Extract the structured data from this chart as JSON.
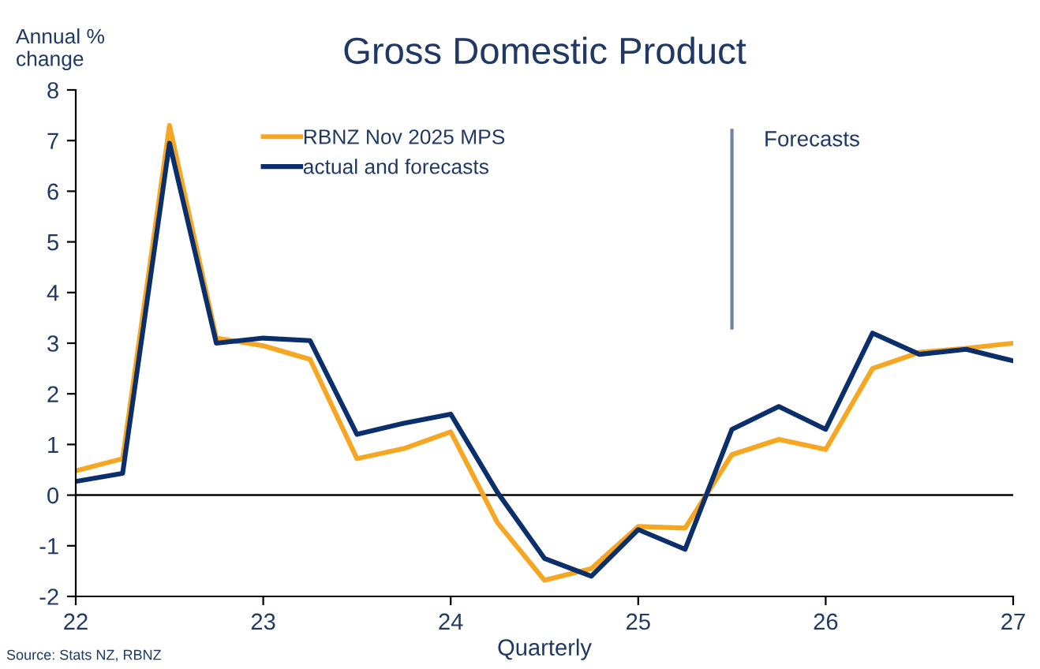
{
  "chart_data": {
    "type": "line",
    "title": "Gross Domestic Product",
    "ylabel": "Annual %\nchange",
    "xlabel": "Quarterly",
    "x": [
      22,
      22.25,
      22.5,
      22.75,
      23,
      23.25,
      23.5,
      23.75,
      24,
      24.25,
      24.5,
      24.75,
      25,
      25.25,
      25.5,
      25.75,
      26,
      26.25,
      26.5,
      26.75,
      27
    ],
    "series": [
      {
        "name": "RBNZ Nov 2025 MPS",
        "color": "#f5a623",
        "values": [
          0.48,
          0.72,
          7.3,
          3.1,
          2.95,
          2.68,
          0.72,
          0.92,
          1.25,
          -0.55,
          -1.68,
          -1.45,
          -0.62,
          -0.65,
          0.8,
          1.1,
          0.9,
          2.5,
          2.82,
          2.9,
          3.0
        ]
      },
      {
        "name": "actual and forecasts",
        "color": "#0b2f6b",
        "values": [
          0.27,
          0.43,
          6.95,
          3.0,
          3.1,
          3.05,
          1.2,
          1.42,
          1.6,
          0.05,
          -1.25,
          -1.6,
          -0.68,
          -1.07,
          1.3,
          1.75,
          1.3,
          3.2,
          2.78,
          2.88,
          2.65
        ]
      }
    ],
    "xlim": [
      22,
      27
    ],
    "xticks": [
      22,
      23,
      24,
      25,
      26,
      27
    ],
    "ylim": [
      -2,
      8
    ],
    "yticks": [
      -2,
      -1,
      0,
      1,
      2,
      3,
      4,
      5,
      6,
      7,
      8
    ],
    "ref_lines": [
      {
        "axis": "y",
        "value": 0,
        "color": "#000000"
      },
      {
        "axis": "x",
        "value": 25.5,
        "label": "Forecasts",
        "color": "#6f84a8"
      }
    ],
    "annotations": [
      "Source: Stats NZ, RBNZ"
    ],
    "legend": "top left",
    "grid": false,
    "marker": "none",
    "line_style": "solid"
  }
}
